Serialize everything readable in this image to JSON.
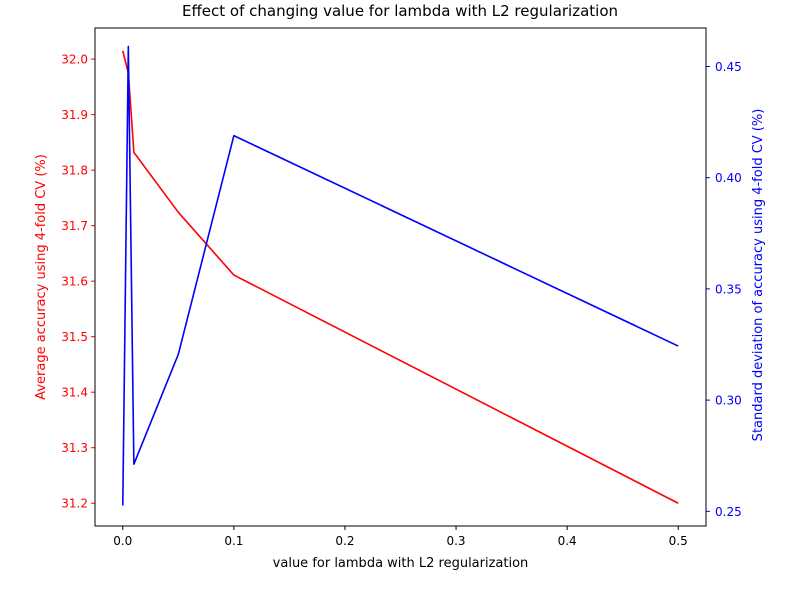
{
  "chart_data": {
    "type": "line",
    "title": "Effect of changing value for lambda with L2 regularization",
    "xlabel": "value for lambda with L2 regularization",
    "ylabel_left": "Average accuracy using 4-fold CV (%)",
    "ylabel_right": "Standard deviation of accuracy using 4-fold CV (%)",
    "x": [
      0.0,
      0.005,
      0.01,
      0.05,
      0.1,
      0.5
    ],
    "xlim": [
      -0.025,
      0.525
    ],
    "xticks": [
      0.0,
      0.1,
      0.2,
      0.3,
      0.4,
      0.5
    ],
    "xtick_labels": [
      "0.0",
      "0.1",
      "0.2",
      "0.3",
      "0.4",
      "0.5"
    ],
    "left_axis": {
      "ylim": [
        31.159,
        32.056
      ],
      "ticks": [
        31.2,
        31.3,
        31.4,
        31.5,
        31.6,
        31.7,
        31.8,
        31.9,
        32.0
      ],
      "tick_labels": [
        "31.2",
        "31.3",
        "31.4",
        "31.5",
        "31.6",
        "31.7",
        "31.8",
        "31.9",
        "32.0"
      ],
      "color": "#ff0000"
    },
    "right_axis": {
      "ylim": [
        0.2434,
        0.4673
      ],
      "ticks": [
        0.25,
        0.3,
        0.35,
        0.4,
        0.45
      ],
      "tick_labels": [
        "0.25",
        "0.30",
        "0.35",
        "0.40",
        "0.45"
      ],
      "color": "#0000ff"
    },
    "series": [
      {
        "axis": "left",
        "color": "#ff0000",
        "x": [
          0.0,
          0.005,
          0.01,
          0.05,
          0.1,
          0.5
        ],
        "values": [
          32.015,
          31.975,
          31.832,
          31.724,
          31.611,
          31.2
        ]
      },
      {
        "axis": "right",
        "color": "#0000ff",
        "x": [
          0.0,
          0.005,
          0.01,
          0.05,
          0.1,
          0.5
        ],
        "values": [
          0.2526,
          0.459,
          0.2712,
          0.3206,
          0.4189,
          0.3243
        ]
      }
    ],
    "grid": false,
    "legend": "none"
  }
}
